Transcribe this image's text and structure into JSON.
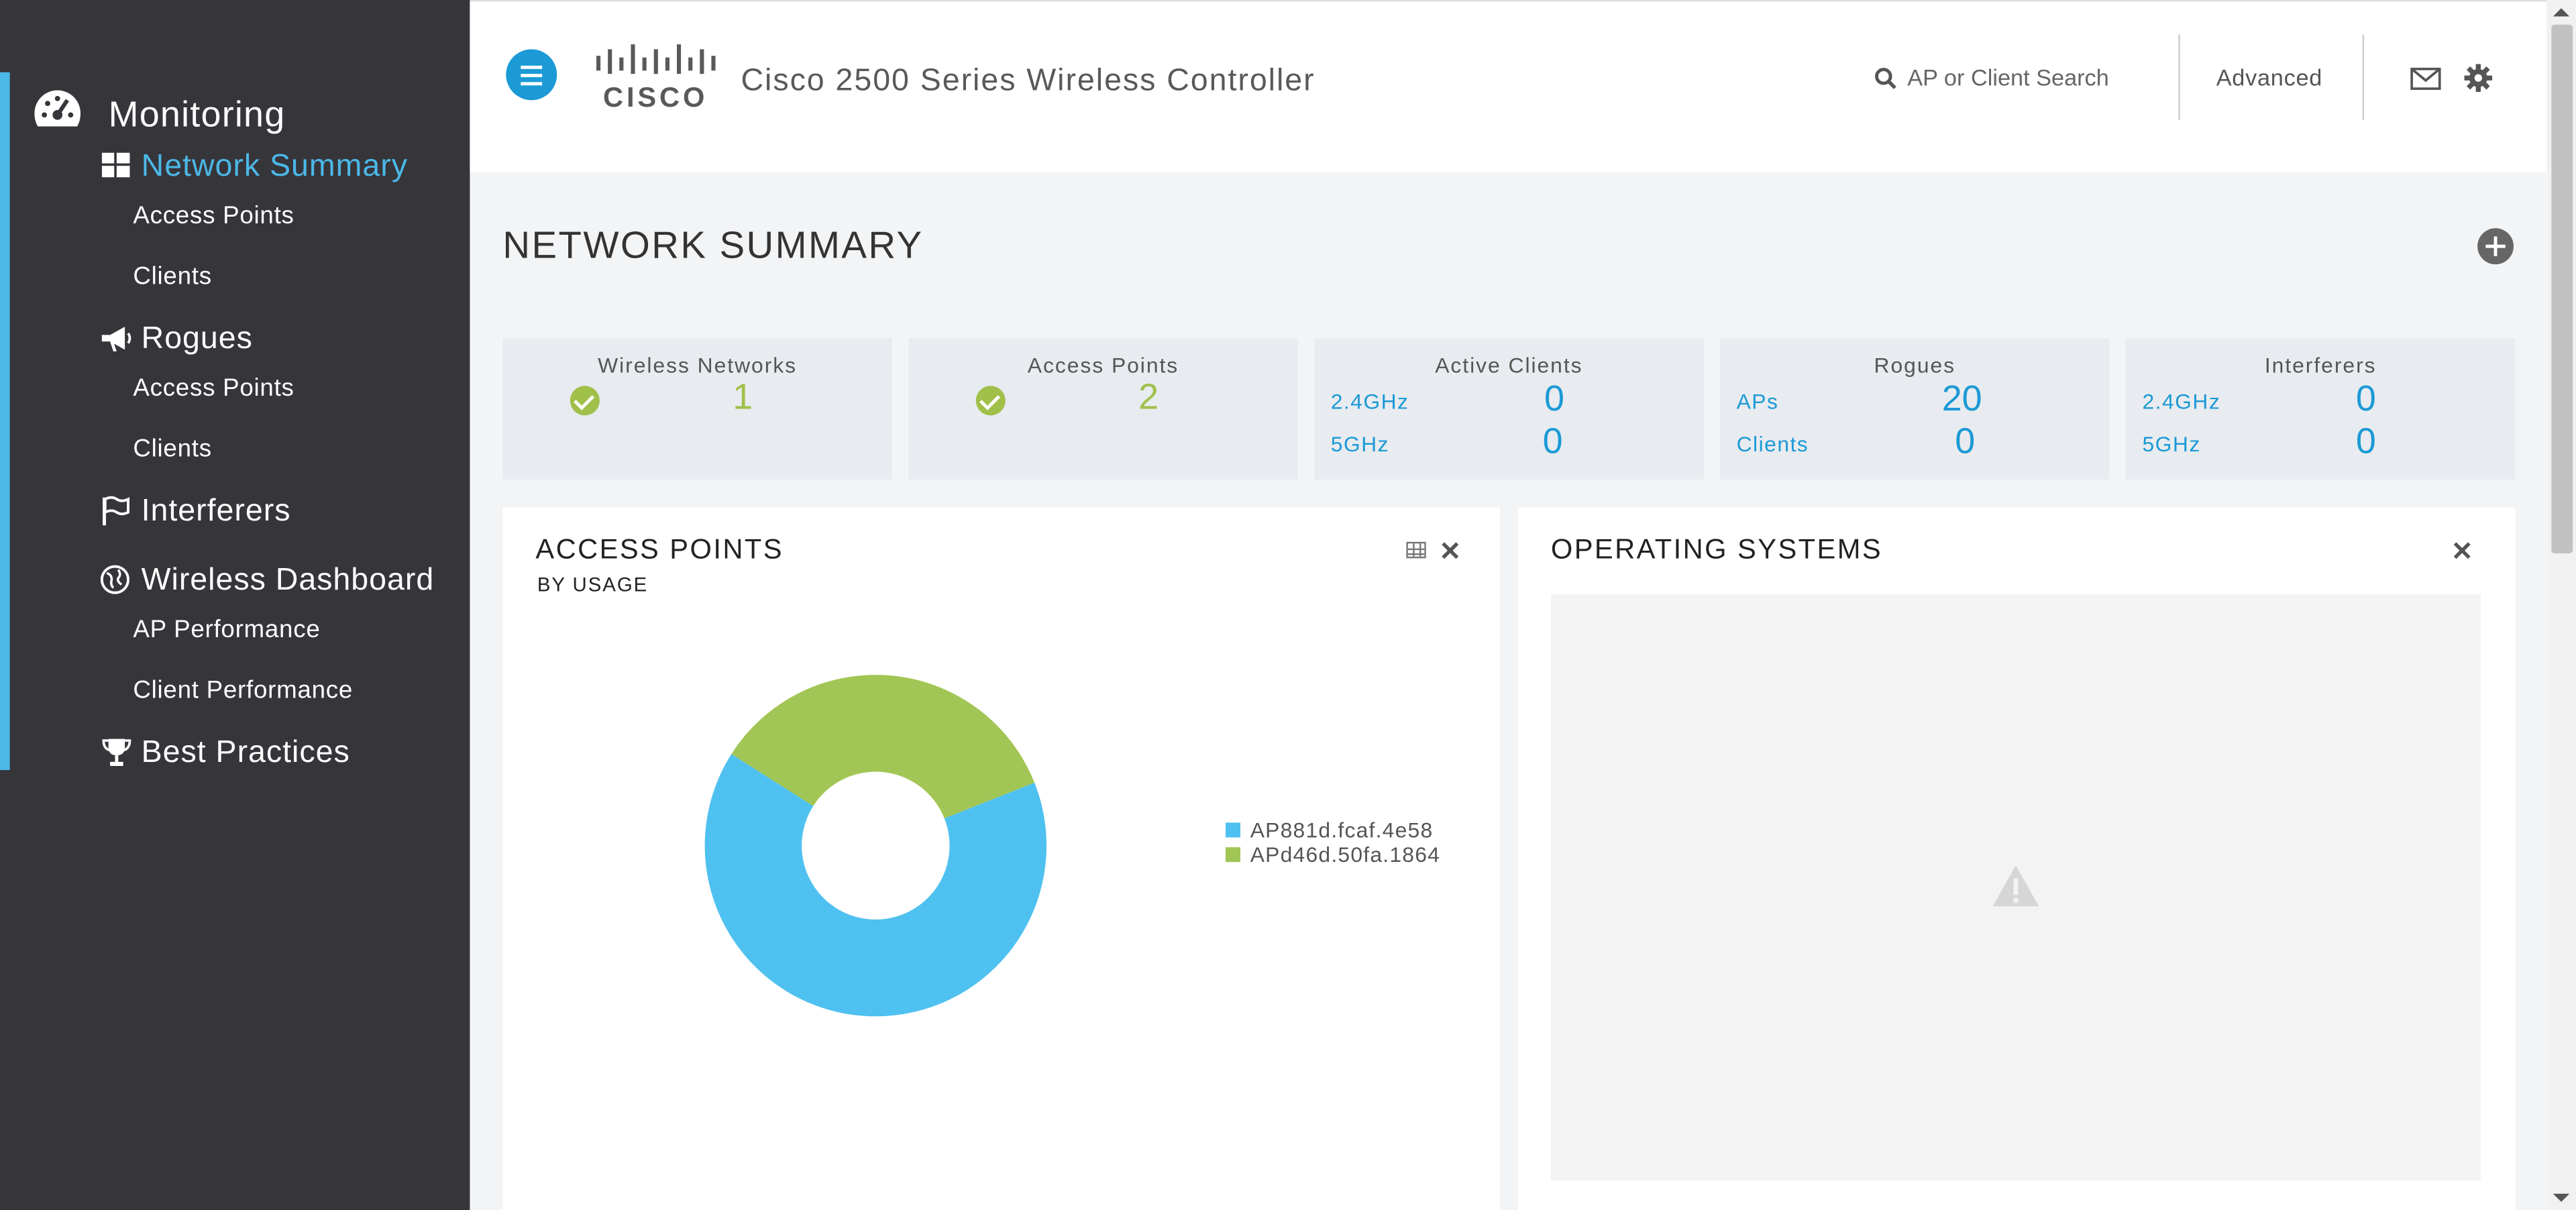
{
  "sidebar": {
    "monitoring": "Monitoring",
    "network_summary": "Network Summary",
    "ns_access_points": "Access Points",
    "ns_clients": "Clients",
    "rogues": "Rogues",
    "rogues_access_points": "Access Points",
    "rogues_clients": "Clients",
    "interferers": "Interferers",
    "wireless_dashboard": "Wireless Dashboard",
    "ap_performance": "AP Performance",
    "client_performance": "Client Performance",
    "best_practices": "Best Practices",
    "accent_color": "#4bb8e8"
  },
  "header": {
    "logo_text": "CISCO",
    "product_title": "Cisco 2500 Series Wireless Controller",
    "search_placeholder": "AP or Client Search",
    "advanced_label": "Advanced"
  },
  "page": {
    "title": "NETWORK SUMMARY"
  },
  "tiles": {
    "wireless_networks": {
      "title": "Wireless Networks",
      "value": "1"
    },
    "access_points": {
      "title": "Access Points",
      "value": "2"
    },
    "active_clients": {
      "title": "Active Clients",
      "row1_label": "2.4GHz",
      "row1_value": "0",
      "row2_label": "5GHz",
      "row2_value": "0"
    },
    "rogues": {
      "title": "Rogues",
      "row1_label": "APs",
      "row1_value": "20",
      "row2_label": "Clients",
      "row2_value": "0"
    },
    "interferers": {
      "title": "Interferers",
      "row1_label": "2.4GHz",
      "row1_value": "0",
      "row2_label": "5GHz",
      "row2_value": "0"
    }
  },
  "panels": {
    "access_points": {
      "title": "ACCESS POINTS",
      "subtitle": "BY USAGE"
    },
    "operating_systems": {
      "title": "OPERATING SYSTEMS"
    }
  },
  "chart_data": {
    "type": "pie",
    "donut": true,
    "categories": [
      "AP881d.fcaf.4e58",
      "APd46d.50fa.1864"
    ],
    "values": [
      65,
      35
    ],
    "colors": [
      "#4fc1f0",
      "#a2c655"
    ],
    "legend_position": "right"
  }
}
